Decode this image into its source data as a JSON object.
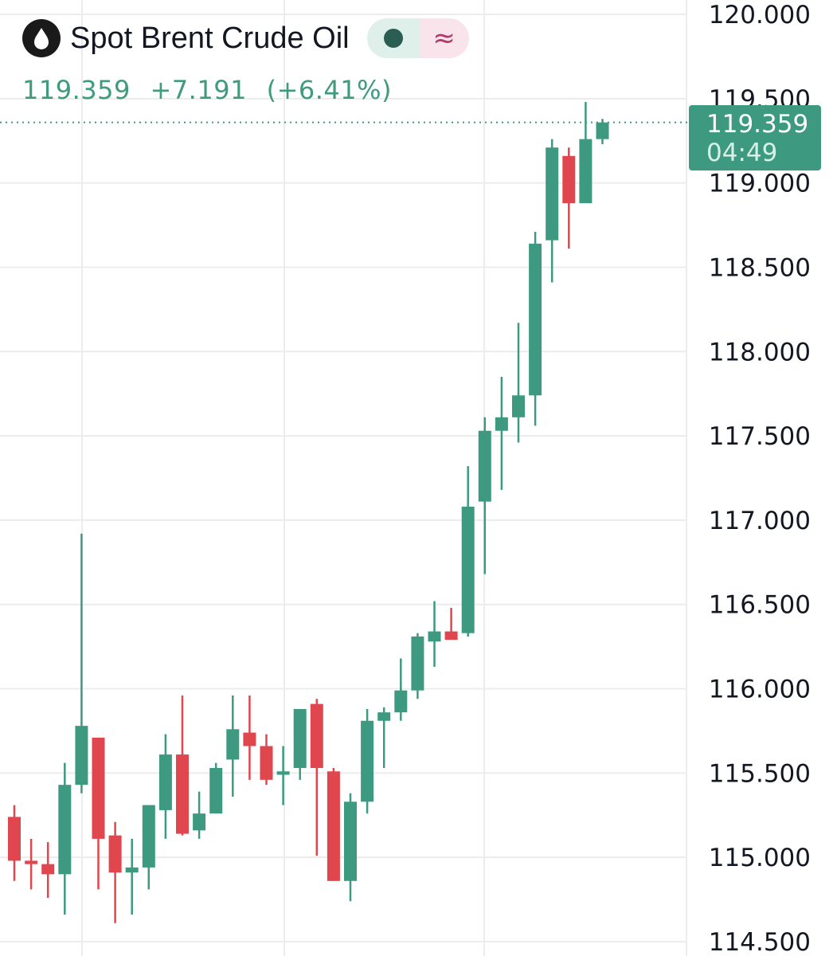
{
  "header": {
    "title": "Spot Brent Crude Oil",
    "logo_icon": "oil-drop-icon",
    "status_icon": "market-status-dot-icon",
    "delay_icon": "approx-wave-icon",
    "last_price": "119.359",
    "change": "+7.191",
    "change_percent": "(+6.41%)"
  },
  "price_label": {
    "value": "119.359",
    "countdown": "04:49"
  },
  "colors": {
    "up": "#3d9a80",
    "down": "#e0464d",
    "grid": "#ececec",
    "axis_text": "#131722",
    "price_line": "#3d9a80"
  },
  "chart_data": {
    "type": "candlestick",
    "title": "Spot Brent Crude Oil",
    "ylim": [
      114.5,
      120.0
    ],
    "y_ticks": [
      "120.000",
      "119.500",
      "119.000",
      "118.500",
      "118.000",
      "117.500",
      "117.000",
      "116.500",
      "116.000",
      "115.500",
      "115.000",
      "114.500"
    ],
    "current_price": 119.359,
    "grid": true,
    "candles": [
      {
        "open": 115.24,
        "high": 115.31,
        "low": 114.86,
        "close": 114.98
      },
      {
        "open": 114.98,
        "high": 115.11,
        "low": 114.81,
        "close": 114.96
      },
      {
        "open": 114.96,
        "high": 115.09,
        "low": 114.76,
        "close": 114.9
      },
      {
        "open": 114.9,
        "high": 115.56,
        "low": 114.66,
        "close": 115.43
      },
      {
        "open": 115.43,
        "high": 116.92,
        "low": 115.38,
        "close": 115.78
      },
      {
        "open": 115.71,
        "high": 115.71,
        "low": 114.81,
        "close": 115.11
      },
      {
        "open": 115.13,
        "high": 115.21,
        "low": 114.61,
        "close": 114.91
      },
      {
        "open": 114.91,
        "high": 115.11,
        "low": 114.66,
        "close": 114.94
      },
      {
        "open": 114.94,
        "high": 115.31,
        "low": 114.81,
        "close": 115.31
      },
      {
        "open": 115.28,
        "high": 115.73,
        "low": 115.11,
        "close": 115.61
      },
      {
        "open": 115.61,
        "high": 115.96,
        "low": 115.13,
        "close": 115.14
      },
      {
        "open": 115.16,
        "high": 115.39,
        "low": 115.11,
        "close": 115.26
      },
      {
        "open": 115.26,
        "high": 115.56,
        "low": 115.26,
        "close": 115.53
      },
      {
        "open": 115.58,
        "high": 115.96,
        "low": 115.36,
        "close": 115.76
      },
      {
        "open": 115.74,
        "high": 115.96,
        "low": 115.46,
        "close": 115.66
      },
      {
        "open": 115.66,
        "high": 115.73,
        "low": 115.43,
        "close": 115.46
      },
      {
        "open": 115.49,
        "high": 115.66,
        "low": 115.31,
        "close": 115.51
      },
      {
        "open": 115.53,
        "high": 115.86,
        "low": 115.46,
        "close": 115.88
      },
      {
        "open": 115.91,
        "high": 115.94,
        "low": 115.01,
        "close": 115.53
      },
      {
        "open": 115.51,
        "high": 115.53,
        "low": 114.86,
        "close": 114.86
      },
      {
        "open": 114.86,
        "high": 115.38,
        "low": 114.74,
        "close": 115.33
      },
      {
        "open": 115.33,
        "high": 115.88,
        "low": 115.26,
        "close": 115.81
      },
      {
        "open": 115.81,
        "high": 115.89,
        "low": 115.53,
        "close": 115.86
      },
      {
        "open": 115.86,
        "high": 116.18,
        "low": 115.81,
        "close": 115.99
      },
      {
        "open": 115.99,
        "high": 116.33,
        "low": 115.94,
        "close": 116.31
      },
      {
        "open": 116.28,
        "high": 116.52,
        "low": 116.13,
        "close": 116.34
      },
      {
        "open": 116.34,
        "high": 116.48,
        "low": 116.31,
        "close": 116.29
      },
      {
        "open": 116.33,
        "high": 117.32,
        "low": 116.31,
        "close": 117.08
      },
      {
        "open": 117.11,
        "high": 117.61,
        "low": 116.68,
        "close": 117.53
      },
      {
        "open": 117.53,
        "high": 117.85,
        "low": 117.18,
        "close": 117.61
      },
      {
        "open": 117.61,
        "high": 118.17,
        "low": 117.46,
        "close": 117.74
      },
      {
        "open": 117.74,
        "high": 118.71,
        "low": 117.56,
        "close": 118.64
      },
      {
        "open": 118.66,
        "high": 119.26,
        "low": 118.41,
        "close": 119.21
      },
      {
        "open": 119.16,
        "high": 119.21,
        "low": 118.61,
        "close": 118.88
      },
      {
        "open": 118.88,
        "high": 119.48,
        "low": 118.88,
        "close": 119.26
      },
      {
        "open": 119.26,
        "high": 119.38,
        "low": 119.23,
        "close": 119.359
      }
    ]
  }
}
